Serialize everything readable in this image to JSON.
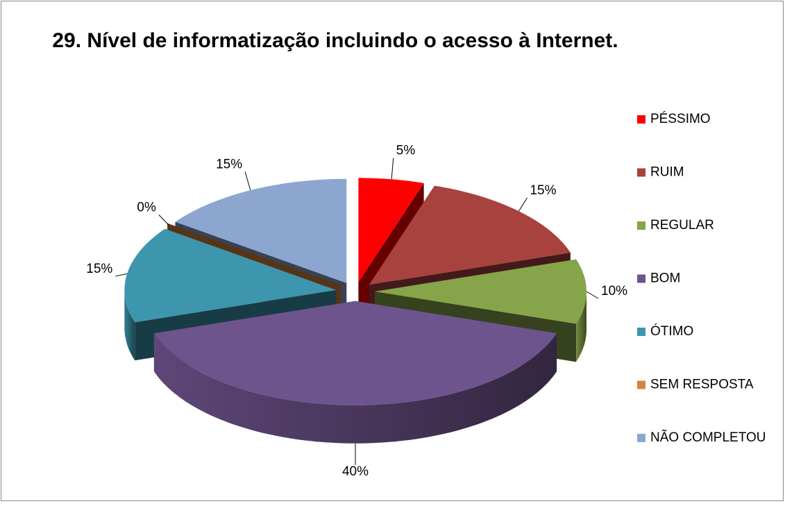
{
  "chart_data": {
    "type": "pie3d",
    "title": "29. Nível de informatização incluindo o acesso à Internet.",
    "categories": [
      "PÉSSIMO",
      "RUIM",
      "REGULAR",
      "BOM",
      "ÓTIMO",
      "SEM RESPOSTA",
      "NÃO COMPLETOU"
    ],
    "values": [
      5,
      15,
      10,
      40,
      15,
      0,
      15
    ],
    "value_labels": [
      "5%",
      "15%",
      "10%",
      "40%",
      "15%",
      "0%",
      "15%"
    ],
    "colors": [
      "#ff0000",
      "#a8423f",
      "#86a44a",
      "#6e548d",
      "#3d96ae",
      "#da8137",
      "#8da6d0"
    ],
    "legend": "right"
  }
}
